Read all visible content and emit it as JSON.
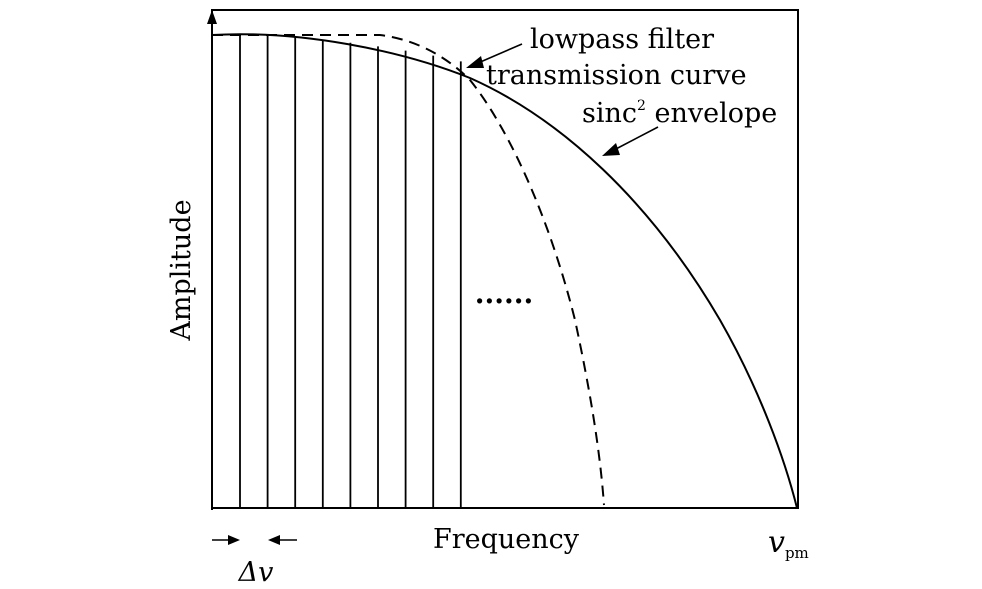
{
  "axes": {
    "ylabel": "Amplitude",
    "xlabel": "Frequency",
    "x_end_label": {
      "symbol": "v",
      "subscript": "pm"
    },
    "spacing_label": "Δv"
  },
  "annotations": {
    "filter_line1": "lowpass filter",
    "filter_line2": "transmission curve",
    "envelope": {
      "base": "sinc",
      "sup": "2",
      "rest": " envelope"
    },
    "ellipsis": "......"
  },
  "comb_line_count": 9,
  "colors": {
    "ink": "#000000",
    "background": "#ffffff"
  }
}
